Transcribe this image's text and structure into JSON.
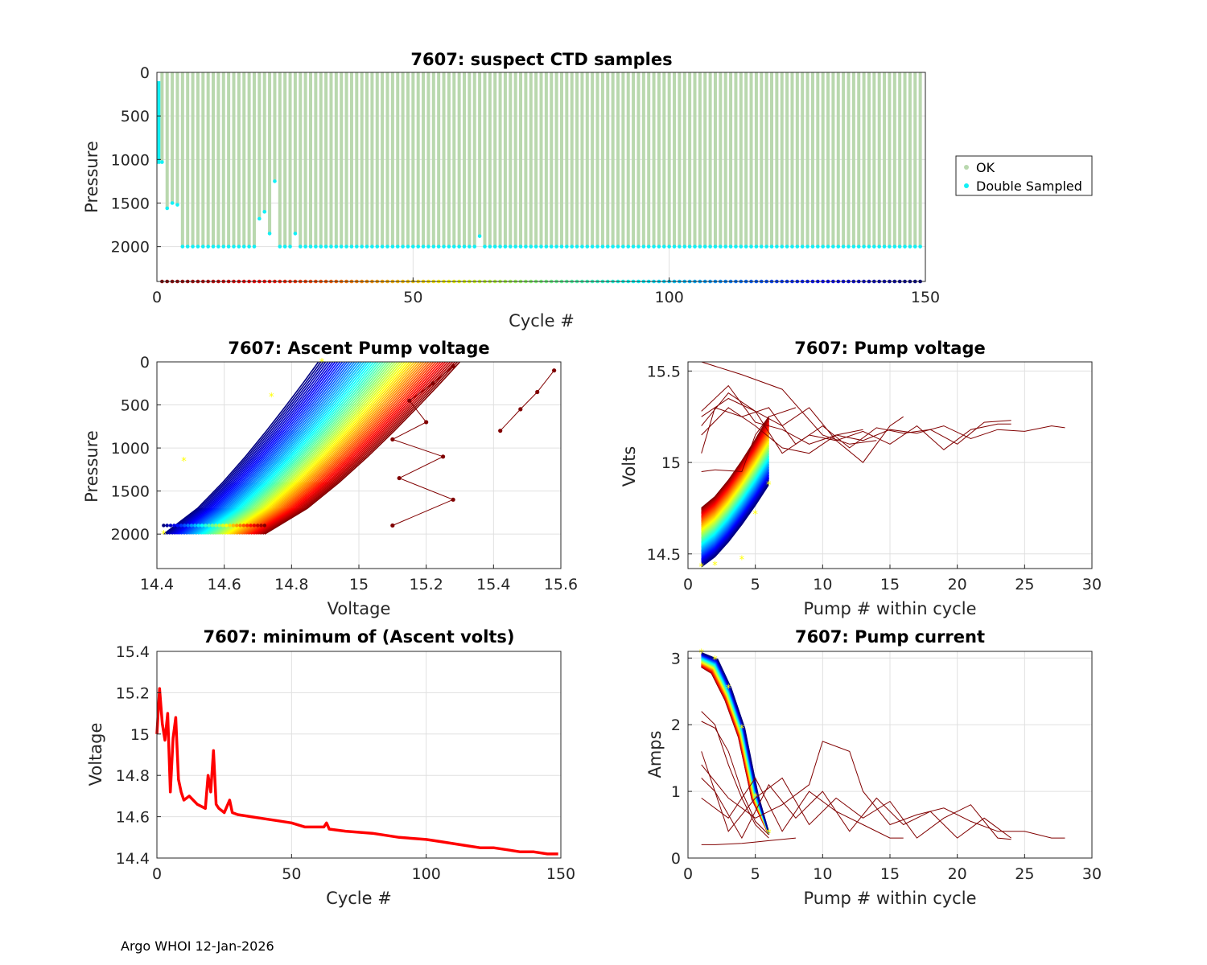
{
  "footer": "Argo WHOI 12-Jan-2026",
  "legend": {
    "ok": "OK",
    "double": "Double Sampled"
  },
  "colors": {
    "ok": "#b9d8ae",
    "double": "#12f0f5",
    "min_line": "#ff0000",
    "marker": "#ffff00",
    "grid": "#e0e0e0"
  },
  "chart_data": [
    {
      "id": "ctd",
      "type": "bar",
      "title": "7607: suspect CTD samples",
      "xlabel": "Cycle #",
      "ylabel": "Pressure",
      "xlim": [
        0,
        150
      ],
      "ylim": [
        0,
        2400
      ],
      "y_reversed": true,
      "xticks": [
        "0",
        "50",
        "100",
        "150"
      ],
      "yticks": [
        "0",
        "500",
        "1000",
        "1500",
        "2000"
      ],
      "cycles_first": 1,
      "cycles_last": 149,
      "profile_top_pressure": 0,
      "profile_bottom_pressure": 2000,
      "short_profiles": [
        {
          "cycle": 1,
          "bottom": 1030
        },
        {
          "cycle": 2,
          "bottom": 1560
        },
        {
          "cycle": 3,
          "bottom": 1500
        },
        {
          "cycle": 4,
          "bottom": 1520
        },
        {
          "cycle": 20,
          "bottom": 1680
        },
        {
          "cycle": 21,
          "bottom": 1600
        },
        {
          "cycle": 22,
          "bottom": 1850
        },
        {
          "cycle": 23,
          "bottom": 1250
        },
        {
          "cycle": 27,
          "bottom": 1850
        },
        {
          "cycle": 63,
          "bottom": 1880
        }
      ],
      "double_sampled_segment": {
        "cycle": 0.2,
        "from": 100,
        "to": 1050
      },
      "cycle_marker_pressure": 2400
    },
    {
      "id": "ascent",
      "type": "line",
      "title": "7607: Ascent Pump voltage",
      "xlabel": "Voltage",
      "ylabel": "Pressure",
      "xlim": [
        14.4,
        15.6
      ],
      "ylim": [
        0,
        2400
      ],
      "y_reversed": true,
      "xticks": [
        "14.4",
        "14.6",
        "14.8",
        "15",
        "15.2",
        "15.4",
        "15.6"
      ],
      "yticks": [
        "0",
        "500",
        "1000",
        "1500",
        "2000"
      ],
      "envelope": {
        "p_bottom": 2000,
        "v_bottom_first": 14.72,
        "v_bottom_last": 14.42,
        "v_top_first": 15.3,
        "v_top_last": 14.88
      },
      "anomalous_profile": [
        {
          "v": 15.1,
          "p": 1900
        },
        {
          "v": 15.28,
          "p": 1600
        },
        {
          "v": 15.12,
          "p": 1350
        },
        {
          "v": 15.25,
          "p": 1100
        },
        {
          "v": 15.1,
          "p": 900
        },
        {
          "v": 15.2,
          "p": 700
        },
        {
          "v": 15.15,
          "p": 450
        },
        {
          "v": 15.22,
          "p": 250
        },
        {
          "v": 15.28,
          "p": 50
        }
      ],
      "outlier_profile": [
        {
          "v": 15.42,
          "p": 800
        },
        {
          "v": 15.48,
          "p": 550
        },
        {
          "v": 15.53,
          "p": 350
        },
        {
          "v": 15.58,
          "p": 100
        }
      ]
    },
    {
      "id": "pumpv",
      "type": "line",
      "title": "7607: Pump voltage",
      "xlabel": "Pump # within cycle",
      "ylabel": "Volts",
      "xlim": [
        0,
        30
      ],
      "ylim": [
        14.42,
        15.55
      ],
      "xticks": [
        "0",
        "5",
        "10",
        "15",
        "20",
        "25",
        "30"
      ],
      "yticks": [
        "14.5",
        "15",
        "15.5"
      ],
      "ytick_values": [
        14.5,
        15,
        15.5
      ],
      "short_series_start_first": 14.75,
      "short_series_start_last": 14.43,
      "short_series_end_first": 15.25,
      "short_series_end_last": 14.88,
      "long_series": [
        {
          "x": [
            1,
            3,
            5,
            7,
            9,
            11,
            13,
            15,
            17,
            19,
            21,
            23,
            25,
            27,
            28
          ],
          "y": [
            15.28,
            15.42,
            15.22,
            15.18,
            15.1,
            15.15,
            15.12,
            15.18,
            15.16,
            15.2,
            15.13,
            15.18,
            15.17,
            15.2,
            15.19
          ]
        },
        {
          "x": [
            1,
            3,
            5,
            7,
            9,
            11,
            13,
            15,
            17,
            19,
            21,
            23,
            24
          ],
          "y": [
            15.25,
            15.35,
            15.28,
            15.05,
            15.15,
            15.12,
            15.17,
            15.1,
            15.2,
            15.07,
            15.18,
            15.21,
            15.21
          ]
        },
        {
          "x": [
            1,
            2,
            4,
            6,
            8,
            10,
            12,
            14,
            16,
            18,
            20,
            22,
            24
          ],
          "y": [
            15.05,
            15.3,
            15.25,
            15.3,
            15.1,
            15.2,
            15.08,
            15.19,
            15.16,
            15.18,
            15.1,
            15.22,
            15.23
          ]
        },
        {
          "x": [
            1,
            3,
            5,
            7,
            9,
            11,
            13,
            15,
            16
          ],
          "y": [
            15.2,
            15.38,
            15.28,
            15.2,
            15.3,
            15.12,
            15.0,
            15.2,
            15.25
          ]
        },
        {
          "x": [
            1,
            2,
            4,
            5,
            6,
            8
          ],
          "y": [
            14.95,
            14.96,
            14.95,
            15.15,
            15.25,
            15.3
          ]
        },
        {
          "x": [
            1,
            3,
            5,
            7,
            9,
            11,
            13
          ],
          "y": [
            15.15,
            15.3,
            15.2,
            15.08,
            15.05,
            15.15,
            15.18
          ]
        },
        {
          "x": [
            1,
            4,
            7,
            10,
            12,
            14
          ],
          "y": [
            15.55,
            15.48,
            15.4,
            15.15,
            15.1,
            15.12
          ]
        }
      ]
    },
    {
      "id": "minv",
      "type": "line",
      "title": "7607: minimum of (Ascent volts)",
      "xlabel": "Cycle #",
      "ylabel": "Voltage",
      "xlim": [
        0,
        150
      ],
      "ylim": [
        14.4,
        15.4
      ],
      "xticks": [
        "0",
        "50",
        "100",
        "150"
      ],
      "yticks": [
        "14.4",
        "14.6",
        "14.8",
        "15",
        "15.2",
        "15.4"
      ],
      "ytick_values": [
        14.4,
        14.6,
        14.8,
        15.0,
        15.2,
        15.4
      ],
      "x": [
        0,
        1,
        2,
        3,
        4,
        5,
        6,
        7,
        8,
        9,
        10,
        12,
        15,
        18,
        19,
        20,
        21,
        22,
        23,
        25,
        27,
        28,
        30,
        35,
        40,
        45,
        50,
        55,
        60,
        62,
        63,
        64,
        70,
        80,
        90,
        100,
        105,
        110,
        115,
        120,
        125,
        130,
        135,
        140,
        145,
        149
      ],
      "y": [
        15.0,
        15.22,
        15.05,
        14.97,
        15.1,
        14.72,
        14.98,
        15.08,
        14.78,
        14.72,
        14.68,
        14.7,
        14.66,
        14.64,
        14.8,
        14.72,
        14.92,
        14.66,
        14.64,
        14.62,
        14.68,
        14.62,
        14.61,
        14.6,
        14.59,
        14.58,
        14.57,
        14.55,
        14.55,
        14.55,
        14.57,
        14.54,
        14.53,
        14.52,
        14.5,
        14.49,
        14.48,
        14.47,
        14.46,
        14.45,
        14.45,
        14.44,
        14.43,
        14.43,
        14.42,
        14.42
      ]
    },
    {
      "id": "current",
      "type": "line",
      "title": "7607: Pump current",
      "xlabel": "Pump # within cycle",
      "ylabel": "Amps",
      "xlim": [
        0,
        30
      ],
      "ylim": [
        0,
        3.1
      ],
      "xticks": [
        "0",
        "5",
        "10",
        "15",
        "20",
        "25",
        "30"
      ],
      "yticks": [
        "0",
        "1",
        "2",
        "3"
      ],
      "ytick_values": [
        0,
        1,
        2,
        3
      ],
      "short_series_profile": [
        3.08,
        2.98,
        2.55,
        1.95,
        0.95,
        0.38
      ],
      "long_series": [
        {
          "x": [
            1,
            3,
            5,
            7,
            9,
            10,
            12,
            13,
            15,
            17,
            19,
            21,
            23,
            25,
            27,
            28
          ],
          "y": [
            1.4,
            0.9,
            0.6,
            0.8,
            1.1,
            1.75,
            1.6,
            1.0,
            0.5,
            0.65,
            0.75,
            0.55,
            0.4,
            0.4,
            0.3,
            0.3
          ]
        },
        {
          "x": [
            1,
            3,
            5,
            7,
            9,
            11,
            13,
            15,
            17,
            19,
            21,
            23,
            24
          ],
          "y": [
            1.6,
            0.4,
            0.9,
            1.2,
            0.5,
            0.9,
            0.6,
            0.85,
            0.3,
            0.6,
            0.8,
            0.3,
            0.28
          ]
        },
        {
          "x": [
            1,
            2,
            4,
            6,
            8,
            10,
            12,
            14,
            16,
            18,
            20,
            22,
            24
          ],
          "y": [
            1.2,
            1.0,
            0.3,
            1.1,
            0.6,
            1.0,
            0.4,
            0.9,
            0.5,
            0.7,
            0.3,
            0.6,
            0.3
          ]
        },
        {
          "x": [
            1,
            3,
            5,
            7,
            9,
            11,
            13,
            15,
            16
          ],
          "y": [
            0.9,
            0.6,
            1.2,
            0.4,
            1.0,
            0.7,
            0.5,
            0.3,
            0.3
          ]
        },
        {
          "x": [
            1,
            2,
            4,
            5,
            6,
            8
          ],
          "y": [
            0.2,
            0.2,
            0.22,
            0.24,
            0.26,
            0.3
          ]
        },
        {
          "x": [
            1,
            2,
            3,
            4,
            5,
            6
          ],
          "y": [
            2.2,
            2.0,
            1.4,
            0.9,
            0.5,
            0.3
          ]
        },
        {
          "x": [
            1,
            2,
            3,
            4,
            5,
            6
          ],
          "y": [
            2.05,
            1.95,
            1.6,
            1.0,
            0.55,
            0.35
          ]
        }
      ]
    }
  ]
}
